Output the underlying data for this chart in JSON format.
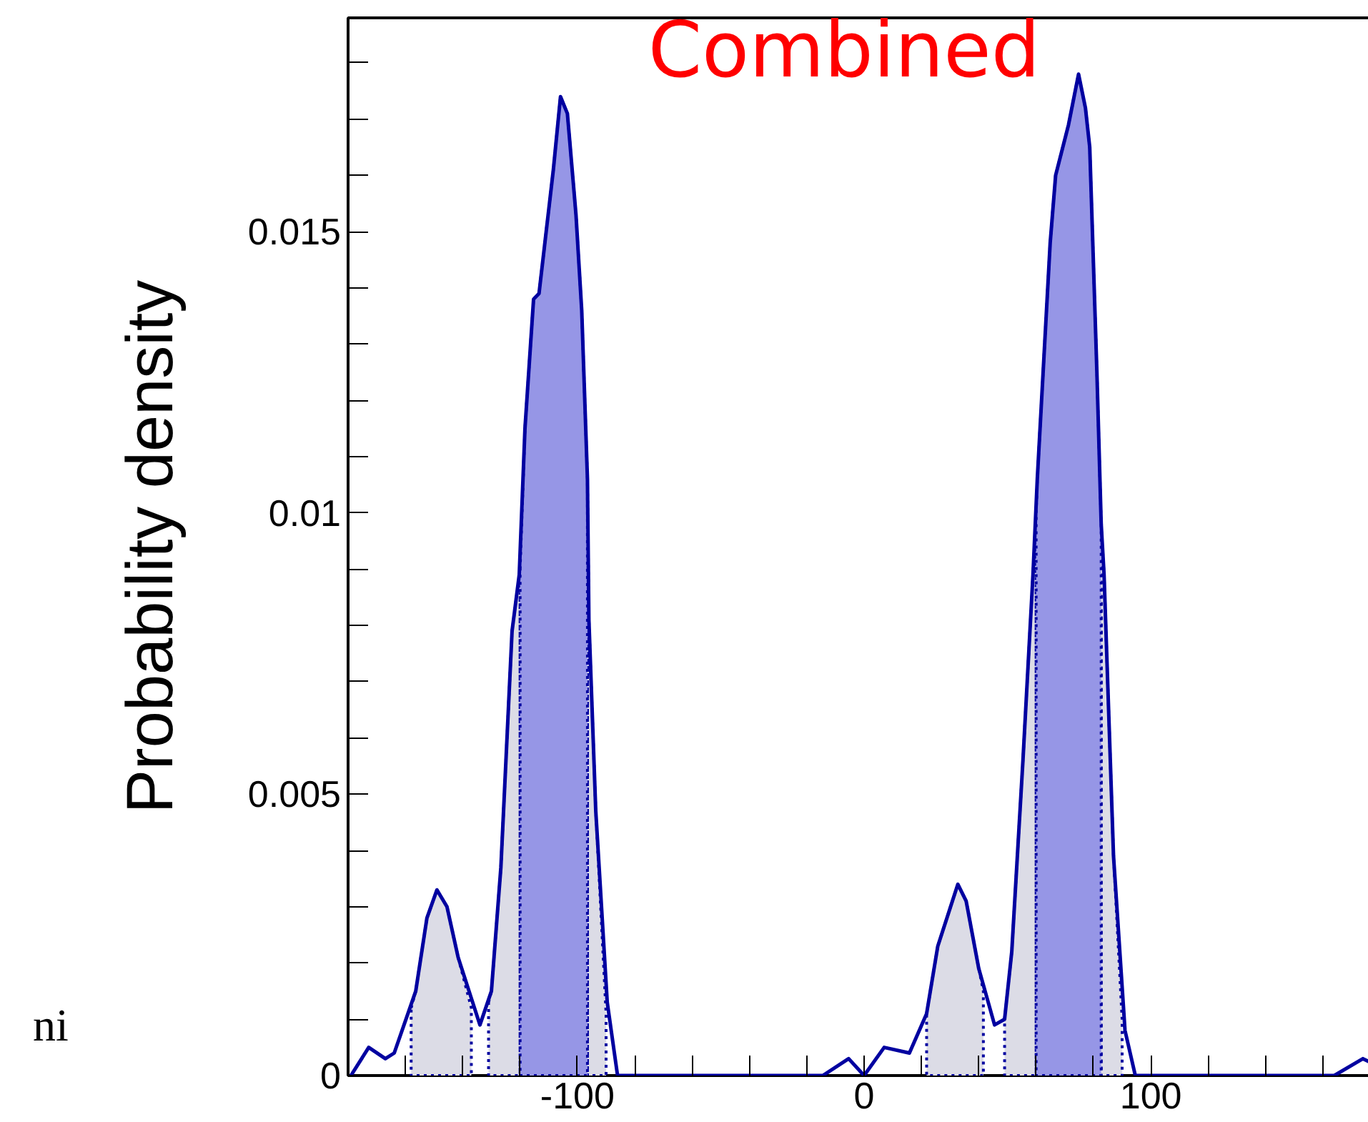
{
  "chart_data": {
    "type": "area",
    "title": "Combined",
    "ylabel": "Probability density",
    "annotations": [
      "ni"
    ],
    "xlim": [
      -180,
      180
    ],
    "ylim": [
      0,
      0.0188
    ],
    "xticks": [
      {
        "value": -160,
        "label": null
      },
      {
        "value": -140,
        "label": null
      },
      {
        "value": -120,
        "label": null
      },
      -100,
      {
        "value": -80,
        "label": null
      },
      {
        "value": -60,
        "label": null
      },
      {
        "value": -40,
        "label": null
      },
      {
        "value": -20,
        "label": null
      },
      0,
      {
        "value": 20,
        "label": null
      },
      {
        "value": 40,
        "label": null
      },
      {
        "value": 60,
        "label": null
      },
      {
        "value": 80,
        "label": null
      },
      100,
      {
        "value": 120,
        "label": null
      },
      {
        "value": 140,
        "label": null
      },
      {
        "value": 160,
        "label": null
      }
    ],
    "yticks": [
      0,
      {
        "value": 0.001,
        "label": null
      },
      {
        "value": 0.002,
        "label": null
      },
      {
        "value": 0.003,
        "label": null
      },
      {
        "value": 0.004,
        "label": null
      },
      0.005,
      {
        "value": 0.006,
        "label": null
      },
      {
        "value": 0.007,
        "label": null
      },
      {
        "value": 0.008,
        "label": null
      },
      {
        "value": 0.009,
        "label": null
      },
      0.01,
      {
        "value": 0.011,
        "label": null
      },
      {
        "value": 0.012,
        "label": null
      },
      {
        "value": 0.013,
        "label": null
      },
      {
        "value": 0.014,
        "label": null
      },
      0.015,
      {
        "value": 0.016,
        "label": null
      },
      {
        "value": 0.017,
        "label": null
      },
      {
        "value": 0.018,
        "label": null
      }
    ],
    "series": [
      {
        "color": "#dcdce6",
        "x": [
          -158,
          -156.4,
          -152.5,
          -149,
          -145.5,
          -141.6,
          -137,
          null,
          -131,
          -130,
          -126.7,
          -122.8,
          -120,
          null,
          -96.5,
          -96,
          -93.6,
          -90,
          null,
          21.8,
          25.7,
          32.7,
          35.6,
          40,
          41.6,
          null,
          49,
          51.5,
          55.4,
          58.9,
          60,
          null,
          82.7,
          83.7,
          87,
          90
        ],
        "values": [
          0.0012,
          0.0015,
          0.0028,
          0.0033,
          0.003,
          0.0021,
          0.0012,
          null,
          0.0013,
          0.0015,
          0.0037,
          0.0079,
          0.009,
          null,
          0.0106,
          0.0081,
          0.0047,
          0.0011,
          null,
          0.0011,
          0.0023,
          0.0034,
          0.0031,
          0.0019,
          0.0015,
          null,
          0.001,
          0.0022,
          0.0056,
          0.0089,
          0.01,
          null,
          0.0098,
          0.0089,
          0.0039,
          0.001
        ]
      },
      {
        "color": "#9696e6",
        "x": [
          -120,
          -118.3,
          -115.3,
          -113.4,
          -108.4,
          -105.9,
          -103.5,
          -100.5,
          -98.5,
          -96.5,
          null,
          60,
          60.4,
          64.9,
          66.8,
          71.3,
          74.8,
          77.2,
          78.7,
          81.2,
          82.7
        ],
        "values": [
          0.009,
          0.0115,
          0.0138,
          0.0139,
          0.0161,
          0.0174,
          0.0171,
          0.0153,
          0.0136,
          0.0106,
          null,
          0.01,
          0.0106,
          0.0148,
          0.016,
          0.0169,
          0.0178,
          0.0172,
          0.0165,
          0.0125,
          0.0098
        ]
      },
      {
        "type": "line",
        "color": "#0000a0",
        "x": [
          -179,
          -172.8,
          -167,
          -163.9,
          -156.4,
          -152.5,
          -149,
          -145.5,
          -141.6,
          -134,
          -130,
          -126.7,
          -122.8,
          -120.3,
          -118.3,
          -115.3,
          -113.4,
          -108.4,
          -105.9,
          -103.5,
          -100.5,
          -98.5,
          -96.5,
          -96,
          -93.6,
          -89.6,
          -86,
          -82,
          -14.4,
          -5.4,
          0,
          7,
          15.8,
          21.8,
          25.7,
          32.7,
          35.6,
          40,
          45.5,
          49,
          51.5,
          55.4,
          58.9,
          60.4,
          64.9,
          66.8,
          71.3,
          74.8,
          77.2,
          78.7,
          81.2,
          82.7,
          83.7,
          87,
          91,
          94.6,
          99.5,
          164,
          174,
          178
        ],
        "values": [
          0,
          0.0005,
          0.0003,
          0.0004,
          0.0015,
          0.0028,
          0.0033,
          0.003,
          0.0021,
          0.0009,
          0.0015,
          0.0037,
          0.0079,
          0.0089,
          0.0115,
          0.0138,
          0.0139,
          0.0161,
          0.0174,
          0.0171,
          0.0153,
          0.0136,
          0.0106,
          0.0081,
          0.0047,
          0.0013,
          0,
          0,
          0,
          0.0003,
          0,
          0.0005,
          0.0004,
          0.0011,
          0.0023,
          0.0034,
          0.0031,
          0.0019,
          0.0009,
          0.001,
          0.0022,
          0.0056,
          0.0089,
          0.0106,
          0.0148,
          0.016,
          0.0169,
          0.0178,
          0.0172,
          0.0165,
          0.0125,
          0.0098,
          0.0089,
          0.0039,
          0.0008,
          0,
          0,
          0,
          0.0003,
          0.0002
        ]
      }
    ]
  }
}
